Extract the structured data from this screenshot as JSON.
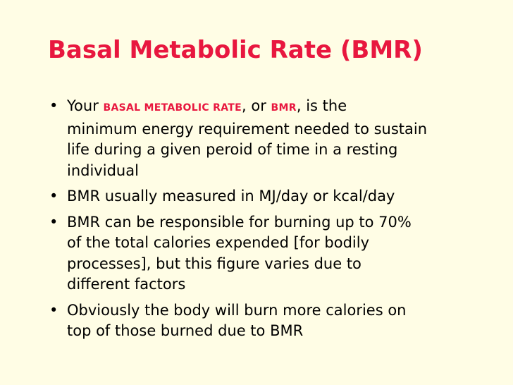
{
  "slide": {
    "title": "Basal Metabolic Rate (BMR)",
    "bullet_glyph": "•",
    "bullets": [
      {
        "lines": [
          {
            "prefix": "Your ",
            "em1": "BASAL METABOLIC RATE",
            "mid": ", or ",
            "em2": "BMR",
            "suffix": ", is the"
          },
          "minimum energy requirement needed to sustain",
          "life during a given peroid of time in a resting",
          "individual"
        ]
      },
      {
        "lines": [
          "BMR usually measured in MJ/day or kcal/day"
        ]
      },
      {
        "lines": [
          "BMR can be responsible for burning up to 70%",
          "of the total calories expended [for bodily",
          "processes], but this figure varies due to",
          "different factors"
        ]
      },
      {
        "lines": [
          "Obviously the body will burn more calories on",
          "top of those burned due to BMR"
        ]
      }
    ]
  }
}
